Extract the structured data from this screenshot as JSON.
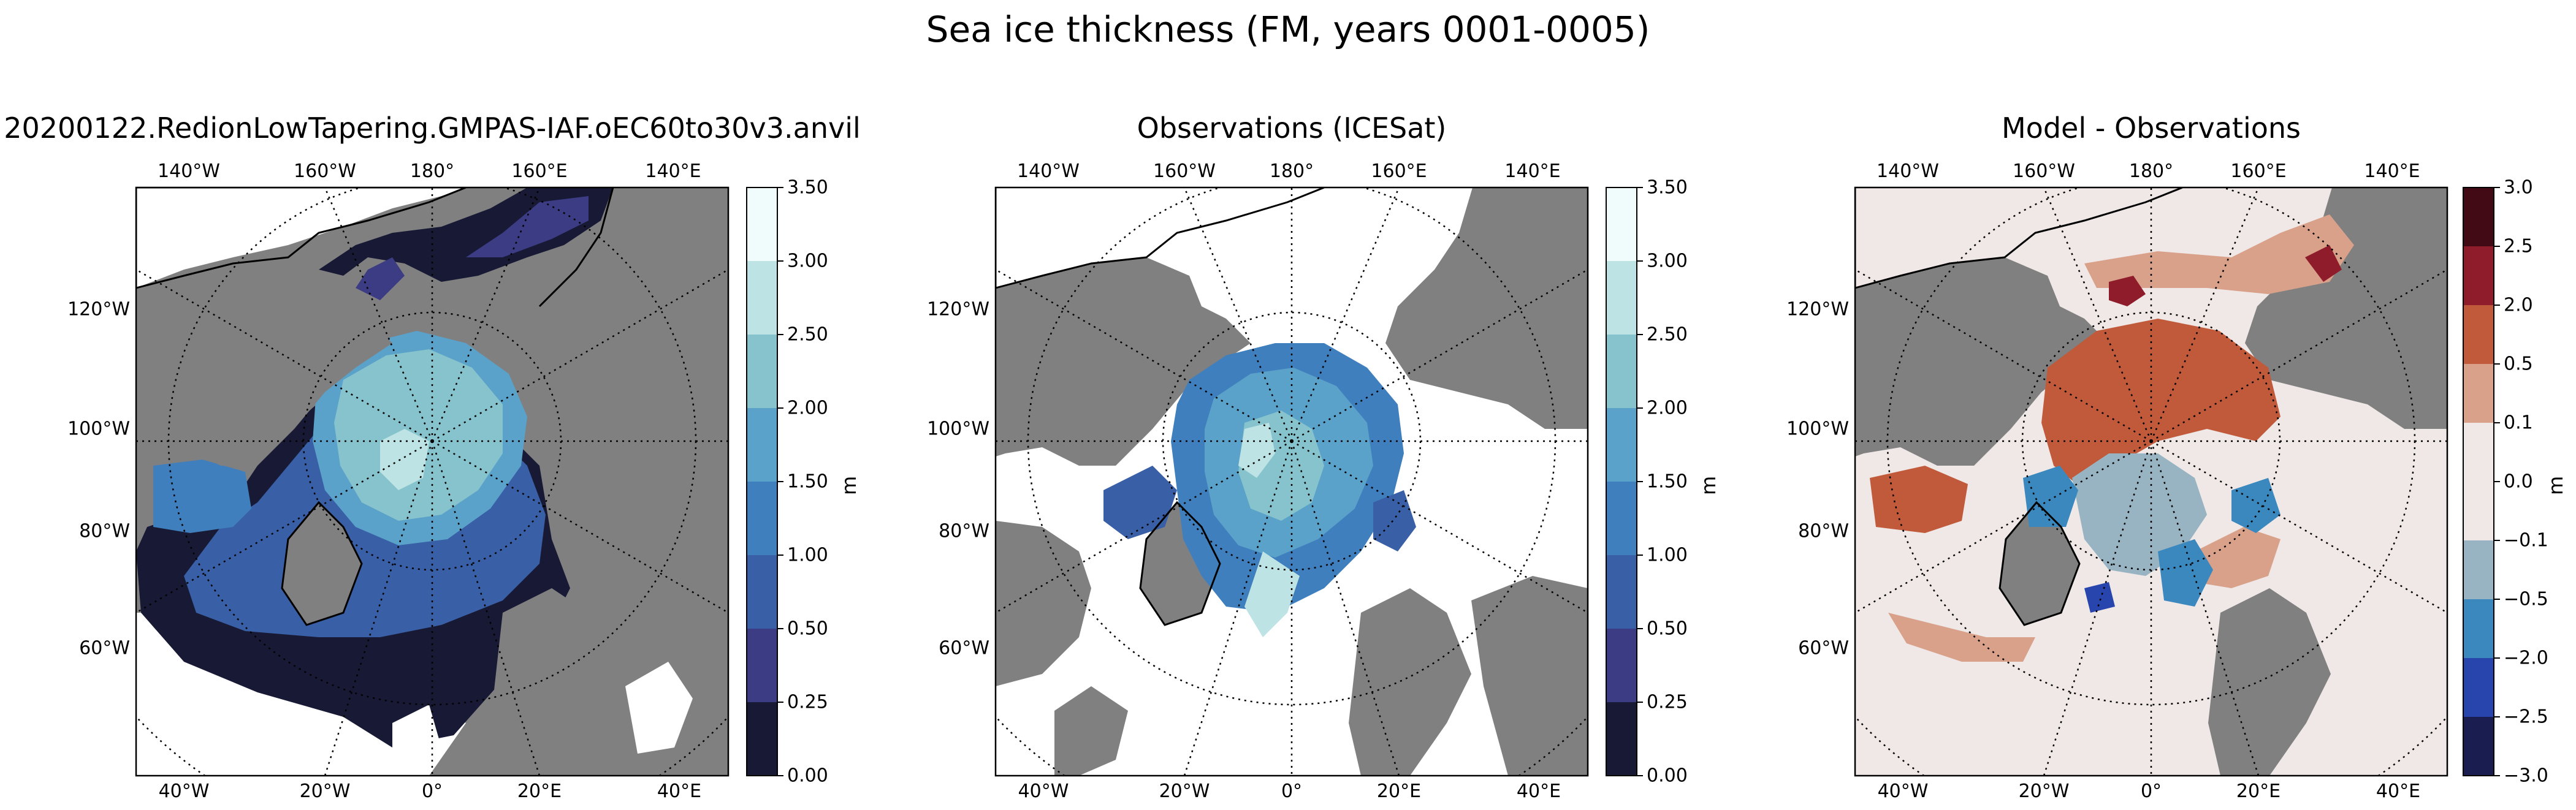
{
  "figure": {
    "title": "Sea ice thickness (FM, years 0001-0005)"
  },
  "panels": [
    {
      "id": "model",
      "title": "20200122.RedionLowTapering.GMPAS-IAF.oEC60to30v3.anvil",
      "top_lon_labels": [
        "140°W",
        "160°W",
        "180°",
        "160°E",
        "140°E"
      ],
      "bottom_lon_labels": [
        "40°W",
        "20°W",
        "0°",
        "20°E",
        "40°E"
      ],
      "lat_labels": [
        "120°W",
        "100°W",
        "80°W",
        "60°W"
      ],
      "colorbar": {
        "unit": "m",
        "ticks": [
          "3.50",
          "3.00",
          "2.50",
          "2.00",
          "1.50",
          "1.00",
          "0.50",
          "0.25",
          "0.00"
        ],
        "colors": [
          "#f0fbfb",
          "#bde3e4",
          "#86c3cc",
          "#5aa2c9",
          "#3f7fbd",
          "#395fa6",
          "#3c3c85",
          "#181a35"
        ]
      }
    },
    {
      "id": "obs",
      "title": "Observations (ICESat)",
      "top_lon_labels": [
        "140°W",
        "160°W",
        "180°",
        "160°E",
        "140°E"
      ],
      "bottom_lon_labels": [
        "40°W",
        "20°W",
        "0°",
        "20°E",
        "40°E"
      ],
      "lat_labels": [
        "120°W",
        "100°W",
        "80°W",
        "60°W"
      ],
      "colorbar": {
        "unit": "m",
        "ticks": [
          "3.50",
          "3.00",
          "2.50",
          "2.00",
          "1.50",
          "1.00",
          "0.50",
          "0.25",
          "0.00"
        ],
        "colors": [
          "#f0fbfb",
          "#bde3e4",
          "#86c3cc",
          "#5aa2c9",
          "#3f7fbd",
          "#395fa6",
          "#3c3c85",
          "#181a35"
        ]
      }
    },
    {
      "id": "bias",
      "title": "Model - Observations",
      "top_lon_labels": [
        "140°W",
        "160°W",
        "180°",
        "160°E",
        "140°E"
      ],
      "bottom_lon_labels": [
        "40°W",
        "20°W",
        "0°",
        "20°E",
        "40°E"
      ],
      "lat_labels": [
        "120°W",
        "100°W",
        "80°W",
        "60°W"
      ],
      "colorbar": {
        "unit": "m",
        "ticks": [
          "3.0",
          "2.5",
          "2.0",
          "0.5",
          "0.1",
          "0.0",
          "−0.1",
          "−0.5",
          "−2.0",
          "−2.5",
          "−3.0"
        ],
        "colors": [
          "#420a14",
          "#8e1c2a",
          "#c05a3b",
          "#d9a18a",
          "#efe8e6",
          "#efe8e6",
          "#98b4c2",
          "#3a88bd",
          "#2745ad",
          "#191d50"
        ]
      }
    }
  ],
  "colors": {
    "land": "#808080",
    "ocean": "#ffffff",
    "coast": "#000000"
  }
}
